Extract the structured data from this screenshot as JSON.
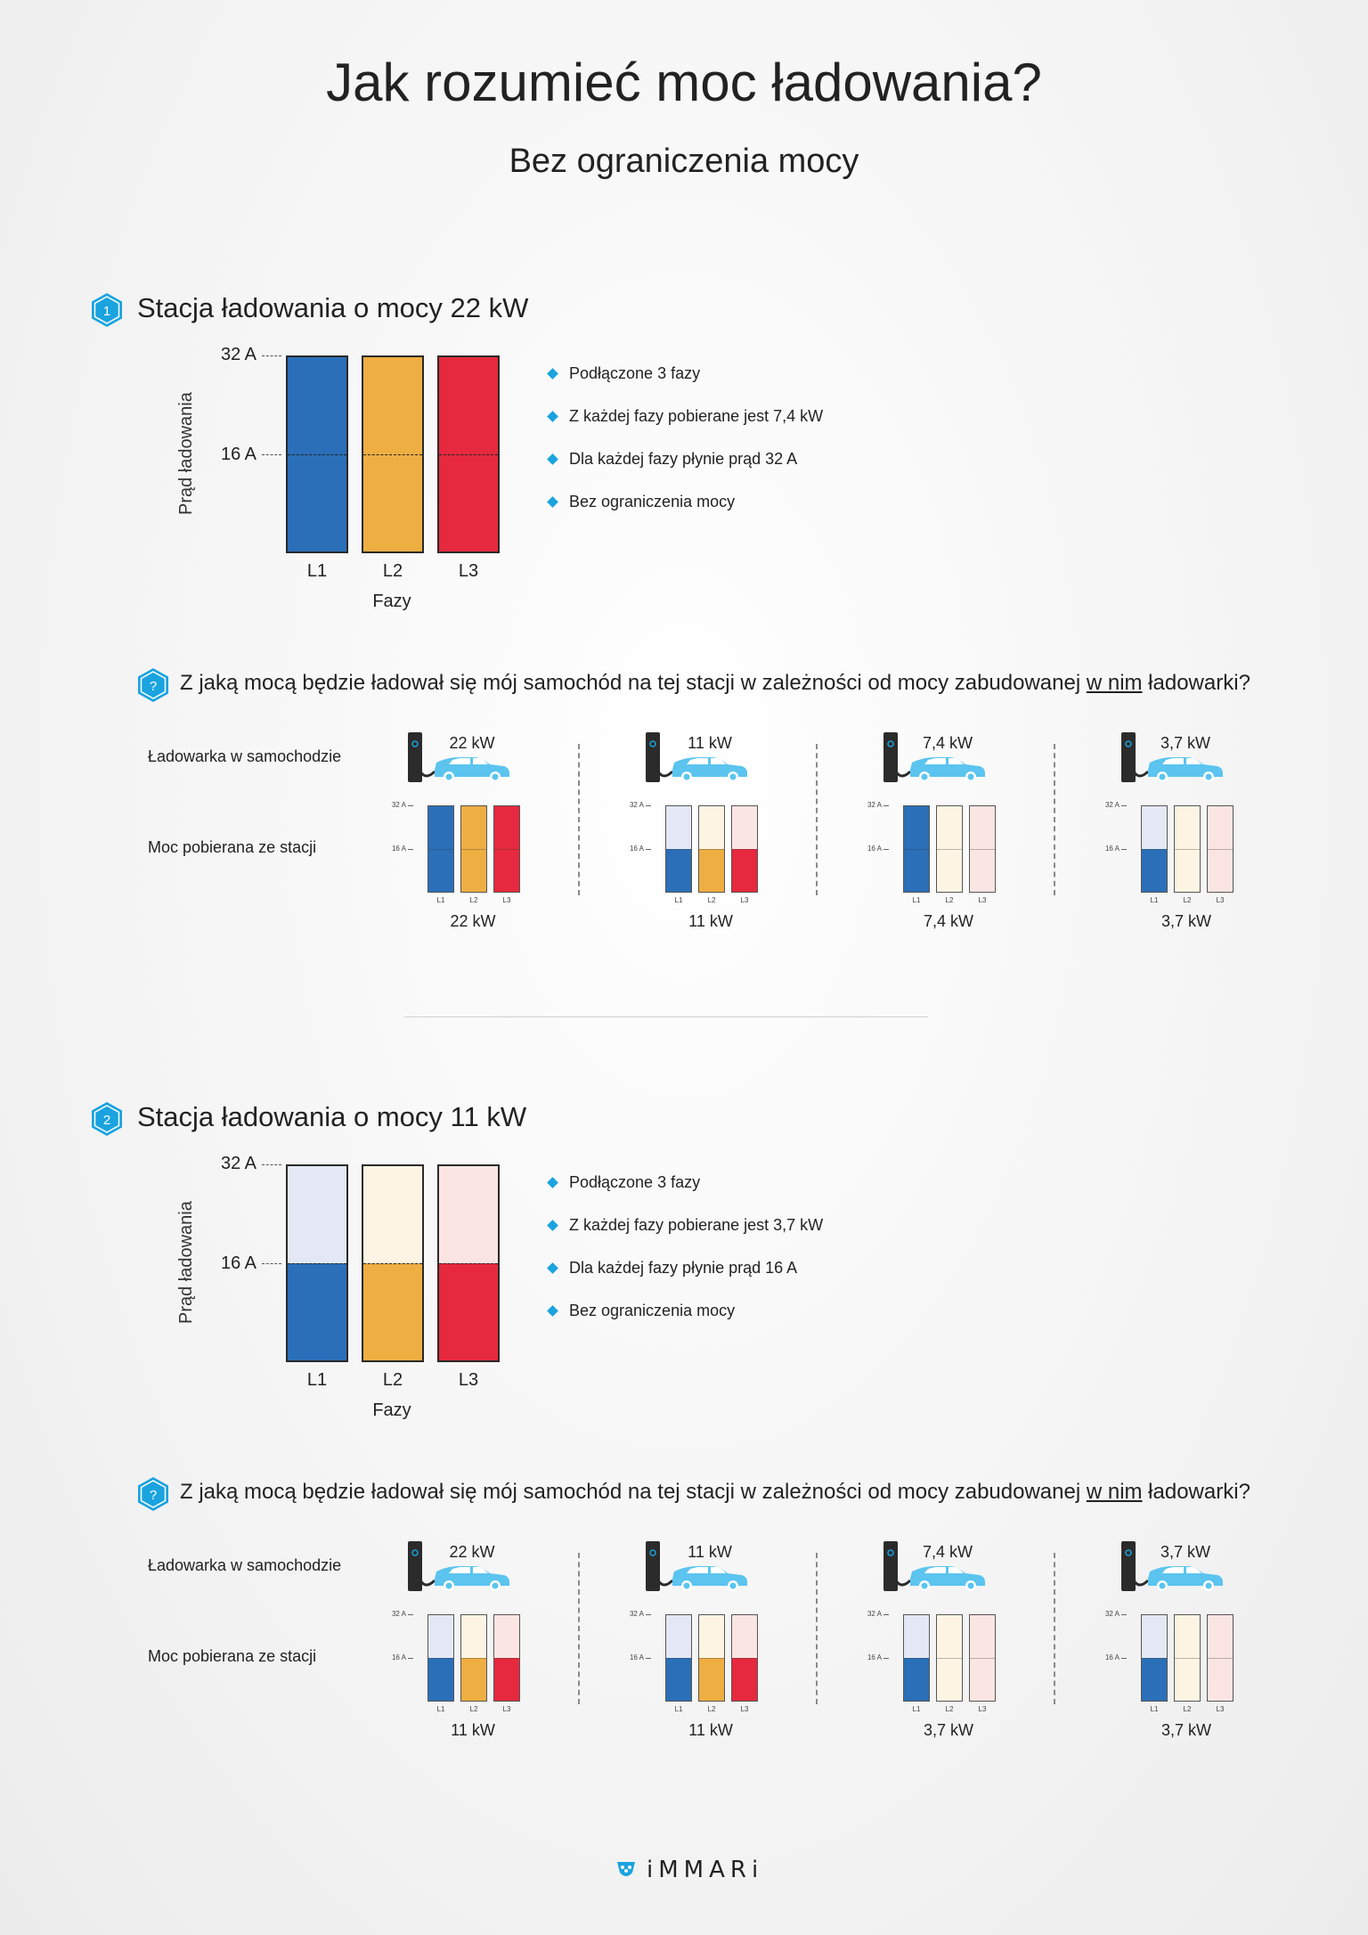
{
  "header": {
    "title": "Jak rozumieć moc ładowania?",
    "subtitle": "Bez ograniczenia mocy"
  },
  "colors": {
    "L1": "#2a6fb8",
    "L2": "#eeae42",
    "L3": "#e6293e",
    "L1_light": "#e3e8f4",
    "L2_light": "#fdf4e4",
    "L3_light": "#fbe5e2",
    "accent": "#1aa3df",
    "car": "#5bc4ef"
  },
  "labels": {
    "y_axis": "Prąd ładowania",
    "x_axis": "Fazy",
    "tick_32": "32 A",
    "tick_16": "16 A",
    "phases": [
      "L1",
      "L2",
      "L3"
    ],
    "row_car": "Ładowarka w samochodzie",
    "row_station": "Moc pobierana ze stacji",
    "question_pre": "Z jaką mocą będzie ładował się mój samochód na tej stacji w zależności od mocy zabudowanej ",
    "question_u": "w nim",
    "question_post": " ładowarki?"
  },
  "sections": [
    {
      "number": "1",
      "title": "Stacja ładowania o mocy 22 kW",
      "bullets": [
        "Podłączone 3 fazy",
        "Z każdej fazy pobierane jest 7,4 kW",
        "Dla każdej fazy płynie prąd 32 A",
        "Bez ograniczenia mocy"
      ],
      "phase_current_A": [
        32,
        32,
        32
      ],
      "scenarios": [
        {
          "car_charger": "22 kW",
          "currents_A": [
            32,
            32,
            32
          ],
          "result": "22 kW"
        },
        {
          "car_charger": "11 kW",
          "currents_A": [
            16,
            16,
            16
          ],
          "result": "11 kW"
        },
        {
          "car_charger": "7,4 kW",
          "currents_A": [
            32,
            0,
            0
          ],
          "result": "7,4 kW"
        },
        {
          "car_charger": "3,7 kW",
          "currents_A": [
            16,
            0,
            0
          ],
          "result": "3,7 kW"
        }
      ]
    },
    {
      "number": "2",
      "title": "Stacja ładowania o mocy 11 kW",
      "bullets": [
        "Podłączone 3 fazy",
        "Z każdej fazy pobierane jest 3,7 kW",
        "Dla każdej fazy płynie prąd 16 A",
        "Bez ograniczenia mocy"
      ],
      "phase_current_A": [
        16,
        16,
        16
      ],
      "scenarios": [
        {
          "car_charger": "22 kW",
          "currents_A": [
            16,
            16,
            16
          ],
          "result": "11 kW"
        },
        {
          "car_charger": "11 kW",
          "currents_A": [
            16,
            16,
            16
          ],
          "result": "11 kW"
        },
        {
          "car_charger": "7,4 kW",
          "currents_A": [
            16,
            0,
            0
          ],
          "result": "3,7 kW"
        },
        {
          "car_charger": "3,7 kW",
          "currents_A": [
            16,
            0,
            0
          ],
          "result": "3,7 kW"
        }
      ]
    }
  ],
  "footer": {
    "brand": "iMMARi"
  }
}
